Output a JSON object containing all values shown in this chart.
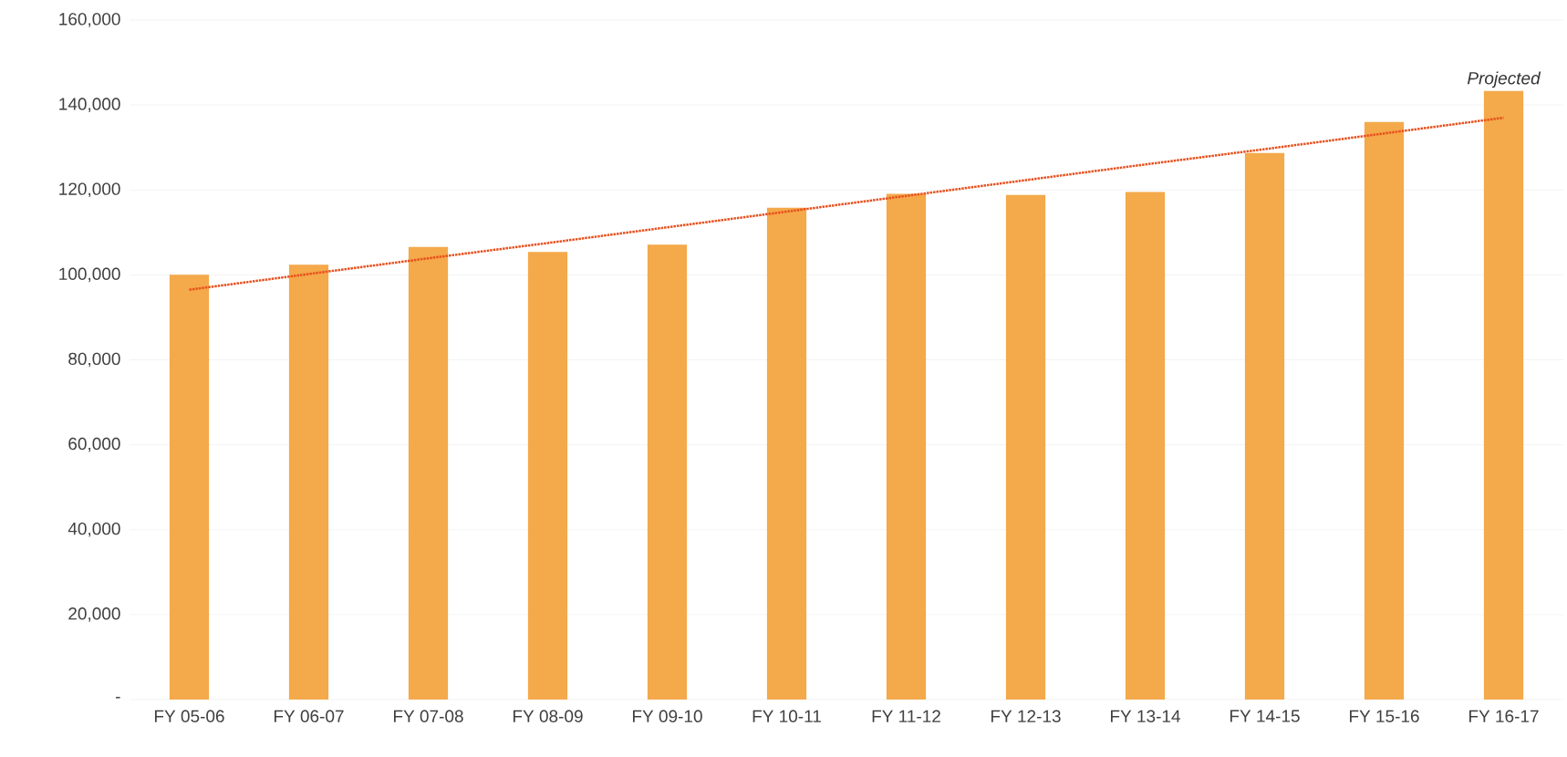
{
  "chart_data": {
    "type": "bar",
    "categories": [
      "FY 05-06",
      "FY 06-07",
      "FY 07-08",
      "FY 08-09",
      "FY 09-10",
      "FY 10-11",
      "FY 11-12",
      "FY 12-13",
      "FY 13-14",
      "FY 14-15",
      "FY 15-16",
      "FY 16-17"
    ],
    "series": [
      {
        "color": "#f4a94a",
        "values": [
          100000,
          102400,
          106600,
          105400,
          107100,
          115800,
          119100,
          118800,
          119500,
          128700,
          136000,
          143300
        ]
      },
      {
        "type": "line",
        "color": "#e8501e",
        "line_style": "dotted",
        "marker": "none",
        "values": [
          96500,
          100200,
          103900,
          107500,
          111200,
          114900,
          118600,
          122300,
          126000,
          129600,
          133300,
          137000
        ]
      }
    ],
    "ylim": [
      0,
      160000
    ],
    "yticks": [
      {
        "value": 0,
        "label": "-"
      },
      {
        "value": 20000,
        "label": "20,000"
      },
      {
        "value": 40000,
        "label": "40,000"
      },
      {
        "value": 60000,
        "label": "60,000"
      },
      {
        "value": 80000,
        "label": "80,000"
      },
      {
        "value": 100000,
        "label": "100,000"
      },
      {
        "value": 120000,
        "label": "120,000"
      },
      {
        "value": 140000,
        "label": "140,000"
      },
      {
        "value": 160000,
        "label": "160,000"
      }
    ],
    "grid": "y",
    "annotations": [
      "Projected"
    ]
  }
}
